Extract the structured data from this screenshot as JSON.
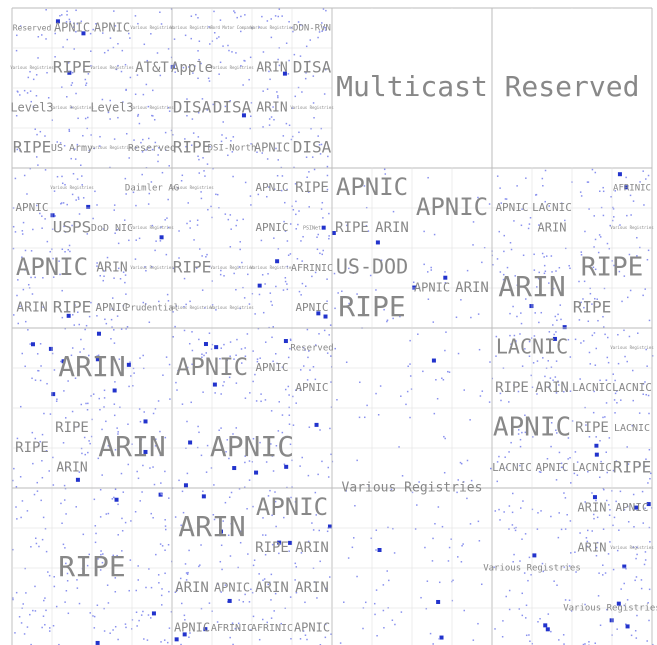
{
  "labels": [
    "Reserved",
    "APNIC",
    "APNIC",
    "Various Registries",
    "Various Registries",
    "Ford Motor Company",
    "Various Registries",
    "DDN-RVN",
    "Multicast",
    "Reserved",
    "Various Registries",
    "RIPE",
    "Various Registries",
    "AT&T",
    "Apple",
    "Various Registries",
    "ARIN",
    "DISA",
    "Level3",
    "Various Registries",
    "Level3",
    "Various Registries",
    "DISA",
    "DISA",
    "ARIN",
    "Various Registries",
    "RIPE",
    "US Army",
    "Various Registries",
    "Reserved",
    "RIPE",
    "DSI-North",
    "APNIC",
    "DISA",
    "APNIC",
    "Various Registries",
    "Daimler AG",
    "Various Registries",
    "APNIC",
    "RIPE",
    "APNIC",
    "APNIC",
    "APNIC",
    "LACNIC",
    "AFRINIC",
    "ARIN",
    "Various Registries",
    "USPS",
    "DoD NIC",
    "Various Registries",
    "APNIC",
    "PSINet",
    "RIPE",
    "ARIN",
    "APNIC",
    "ARIN",
    "Various Registries",
    "RIPE",
    "Various Registries",
    "Various Registries",
    "AFRINIC",
    "US-DOD",
    "APNIC",
    "ARIN",
    "ARIN",
    "RIPE",
    "ARIN",
    "RIPE",
    "APNIC",
    "Prudential",
    "Various Registries",
    "Various Registries",
    "APNIC",
    "RIPE",
    "RIPE",
    "ARIN",
    "APNIC",
    "APNIC",
    "Reserved",
    "APNIC",
    "LACNIC",
    "Various Registries",
    "RIPE",
    "ARIN",
    "LACNIC",
    "LACNIC",
    "RIPE",
    "RIPE",
    "ARIN",
    "ARIN",
    "APNIC",
    "APNIC",
    "RIPE",
    "LACNIC",
    "LACNIC",
    "APNIC",
    "LACNIC",
    "RIPE",
    "Various Registries",
    "RIPE",
    "ARIN",
    "APNIC",
    "RIPE",
    "ARIN",
    "ARIN",
    "APNIC",
    "ARIN",
    "ARIN",
    "APNIC",
    "AFRINIC",
    "AFRINIC",
    "APNIC",
    "ARIN",
    "APNIC",
    "ARIN",
    "Various Registries",
    "Various Registries",
    "Various Registries"
  ]
}
